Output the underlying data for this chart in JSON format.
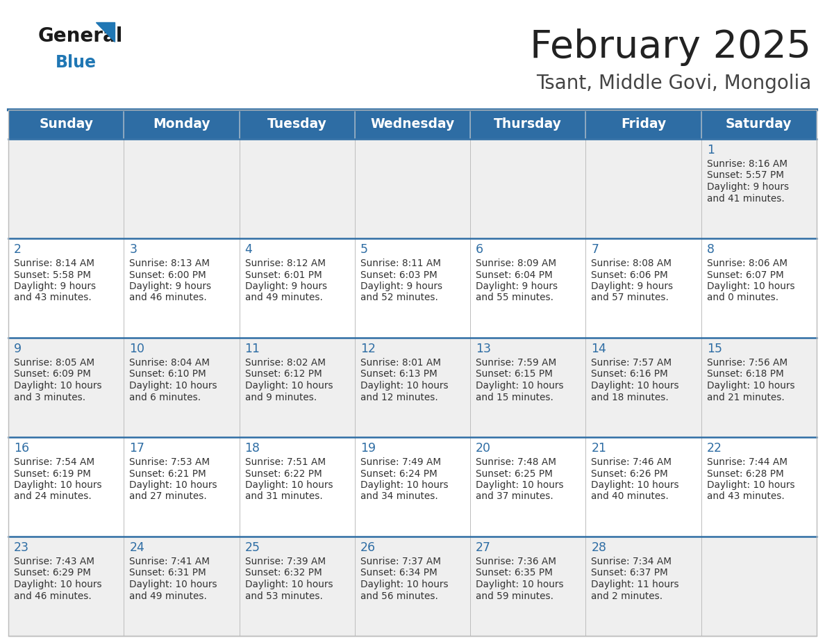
{
  "title": "February 2025",
  "subtitle": "Tsant, Middle Govi, Mongolia",
  "days_of_week": [
    "Sunday",
    "Monday",
    "Tuesday",
    "Wednesday",
    "Thursday",
    "Friday",
    "Saturday"
  ],
  "header_bg": "#2E6DA4",
  "header_text": "#FFFFFF",
  "cell_bg_odd": "#EFEFEF",
  "cell_bg_even": "#FFFFFF",
  "border_color": "#BBBBBB",
  "week_border_color": "#2E6DA4",
  "day_number_color": "#2E6DA4",
  "info_text_color": "#333333",
  "title_color": "#222222",
  "subtitle_color": "#444444",
  "logo_general_color": "#1a1a1a",
  "logo_blue_color": "#2077B4",
  "calendar_data": [
    {
      "day": 1,
      "col": 6,
      "row": 0,
      "sunrise": "8:16 AM",
      "sunset": "5:57 PM",
      "daylight_hours": "9",
      "daylight_minutes": "41"
    },
    {
      "day": 2,
      "col": 0,
      "row": 1,
      "sunrise": "8:14 AM",
      "sunset": "5:58 PM",
      "daylight_hours": "9",
      "daylight_minutes": "43"
    },
    {
      "day": 3,
      "col": 1,
      "row": 1,
      "sunrise": "8:13 AM",
      "sunset": "6:00 PM",
      "daylight_hours": "9",
      "daylight_minutes": "46"
    },
    {
      "day": 4,
      "col": 2,
      "row": 1,
      "sunrise": "8:12 AM",
      "sunset": "6:01 PM",
      "daylight_hours": "9",
      "daylight_minutes": "49"
    },
    {
      "day": 5,
      "col": 3,
      "row": 1,
      "sunrise": "8:11 AM",
      "sunset": "6:03 PM",
      "daylight_hours": "9",
      "daylight_minutes": "52"
    },
    {
      "day": 6,
      "col": 4,
      "row": 1,
      "sunrise": "8:09 AM",
      "sunset": "6:04 PM",
      "daylight_hours": "9",
      "daylight_minutes": "55"
    },
    {
      "day": 7,
      "col": 5,
      "row": 1,
      "sunrise": "8:08 AM",
      "sunset": "6:06 PM",
      "daylight_hours": "9",
      "daylight_minutes": "57"
    },
    {
      "day": 8,
      "col": 6,
      "row": 1,
      "sunrise": "8:06 AM",
      "sunset": "6:07 PM",
      "daylight_hours": "10",
      "daylight_minutes": "0"
    },
    {
      "day": 9,
      "col": 0,
      "row": 2,
      "sunrise": "8:05 AM",
      "sunset": "6:09 PM",
      "daylight_hours": "10",
      "daylight_minutes": "3"
    },
    {
      "day": 10,
      "col": 1,
      "row": 2,
      "sunrise": "8:04 AM",
      "sunset": "6:10 PM",
      "daylight_hours": "10",
      "daylight_minutes": "6"
    },
    {
      "day": 11,
      "col": 2,
      "row": 2,
      "sunrise": "8:02 AM",
      "sunset": "6:12 PM",
      "daylight_hours": "10",
      "daylight_minutes": "9"
    },
    {
      "day": 12,
      "col": 3,
      "row": 2,
      "sunrise": "8:01 AM",
      "sunset": "6:13 PM",
      "daylight_hours": "10",
      "daylight_minutes": "12"
    },
    {
      "day": 13,
      "col": 4,
      "row": 2,
      "sunrise": "7:59 AM",
      "sunset": "6:15 PM",
      "daylight_hours": "10",
      "daylight_minutes": "15"
    },
    {
      "day": 14,
      "col": 5,
      "row": 2,
      "sunrise": "7:57 AM",
      "sunset": "6:16 PM",
      "daylight_hours": "10",
      "daylight_minutes": "18"
    },
    {
      "day": 15,
      "col": 6,
      "row": 2,
      "sunrise": "7:56 AM",
      "sunset": "6:18 PM",
      "daylight_hours": "10",
      "daylight_minutes": "21"
    },
    {
      "day": 16,
      "col": 0,
      "row": 3,
      "sunrise": "7:54 AM",
      "sunset": "6:19 PM",
      "daylight_hours": "10",
      "daylight_minutes": "24"
    },
    {
      "day": 17,
      "col": 1,
      "row": 3,
      "sunrise": "7:53 AM",
      "sunset": "6:21 PM",
      "daylight_hours": "10",
      "daylight_minutes": "27"
    },
    {
      "day": 18,
      "col": 2,
      "row": 3,
      "sunrise": "7:51 AM",
      "sunset": "6:22 PM",
      "daylight_hours": "10",
      "daylight_minutes": "31"
    },
    {
      "day": 19,
      "col": 3,
      "row": 3,
      "sunrise": "7:49 AM",
      "sunset": "6:24 PM",
      "daylight_hours": "10",
      "daylight_minutes": "34"
    },
    {
      "day": 20,
      "col": 4,
      "row": 3,
      "sunrise": "7:48 AM",
      "sunset": "6:25 PM",
      "daylight_hours": "10",
      "daylight_minutes": "37"
    },
    {
      "day": 21,
      "col": 5,
      "row": 3,
      "sunrise": "7:46 AM",
      "sunset": "6:26 PM",
      "daylight_hours": "10",
      "daylight_minutes": "40"
    },
    {
      "day": 22,
      "col": 6,
      "row": 3,
      "sunrise": "7:44 AM",
      "sunset": "6:28 PM",
      "daylight_hours": "10",
      "daylight_minutes": "43"
    },
    {
      "day": 23,
      "col": 0,
      "row": 4,
      "sunrise": "7:43 AM",
      "sunset": "6:29 PM",
      "daylight_hours": "10",
      "daylight_minutes": "46"
    },
    {
      "day": 24,
      "col": 1,
      "row": 4,
      "sunrise": "7:41 AM",
      "sunset": "6:31 PM",
      "daylight_hours": "10",
      "daylight_minutes": "49"
    },
    {
      "day": 25,
      "col": 2,
      "row": 4,
      "sunrise": "7:39 AM",
      "sunset": "6:32 PM",
      "daylight_hours": "10",
      "daylight_minutes": "53"
    },
    {
      "day": 26,
      "col": 3,
      "row": 4,
      "sunrise": "7:37 AM",
      "sunset": "6:34 PM",
      "daylight_hours": "10",
      "daylight_minutes": "56"
    },
    {
      "day": 27,
      "col": 4,
      "row": 4,
      "sunrise": "7:36 AM",
      "sunset": "6:35 PM",
      "daylight_hours": "10",
      "daylight_minutes": "59"
    },
    {
      "day": 28,
      "col": 5,
      "row": 4,
      "sunrise": "7:34 AM",
      "sunset": "6:37 PM",
      "daylight_hours": "11",
      "daylight_minutes": "2"
    }
  ]
}
